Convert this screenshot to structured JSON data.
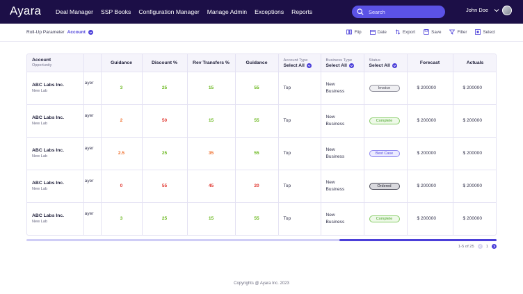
{
  "app": {
    "logo": "Ayara"
  },
  "nav": {
    "items": [
      "Deal Manager",
      "SSP Books",
      "Configuration Manager",
      "Manage Admin",
      "Exceptions",
      "Reports"
    ]
  },
  "search": {
    "placeholder": "Search"
  },
  "user": {
    "name": "John Doe"
  },
  "toolbar": {
    "rollup_label": "Roll-Up Parameter",
    "rollup_value": "Account",
    "tools": [
      "Flip",
      "Date",
      "Export",
      "Save",
      "Filter",
      "Select"
    ]
  },
  "table": {
    "headers": {
      "account": "Account",
      "opportunity": "Opportunity",
      "guidance1": "Guidance",
      "discount": "Discount %",
      "rev_transfers": "Rev Transfers %",
      "guidance2": "Guidance",
      "account_type": "Account Type",
      "business_type": "Business Type",
      "status": "Status",
      "select_all": "Select All",
      "forecast": "Forecast",
      "actuals": "Actuals"
    },
    "rows": [
      {
        "account": "ABC Labs Inc.",
        "opportunity": "New Lab",
        "player": "ayer",
        "guidance1": "3",
        "discount": "25",
        "rev_transfers": "15",
        "guidance2": "55",
        "account_type": "Top",
        "business_type": "New Business",
        "status": "Invoice",
        "forecast": "$ 200000",
        "actuals": "$ 200000"
      },
      {
        "account": "ABC Labs Inc.",
        "opportunity": "New Lab",
        "player": "ayer",
        "guidance1": "2",
        "discount": "50",
        "rev_transfers": "15",
        "guidance2": "55",
        "account_type": "Top",
        "business_type": "New Business",
        "status": "Complete",
        "forecast": "$ 200000",
        "actuals": "$ 200000"
      },
      {
        "account": "ABC Labs Inc.",
        "opportunity": "New Lab",
        "player": "ayer",
        "guidance1": "2.5",
        "discount": "25",
        "rev_transfers": "35",
        "guidance2": "55",
        "account_type": "Top",
        "business_type": "New Business",
        "status": "Best Case",
        "forecast": "$ 200000",
        "actuals": "$ 200000"
      },
      {
        "account": "ABC Labs Inc.",
        "opportunity": "New Lab",
        "player": "ayer",
        "guidance1": "0",
        "discount": "55",
        "rev_transfers": "45",
        "guidance2": "20",
        "account_type": "Top",
        "business_type": "New Business",
        "status": "Ordered",
        "forecast": "$ 200000",
        "actuals": "$ 200000"
      },
      {
        "account": "ABC Labs Inc.",
        "opportunity": "New Lab",
        "player": "ayer",
        "guidance1": "3",
        "discount": "25",
        "rev_transfers": "15",
        "guidance2": "55",
        "account_type": "Top",
        "business_type": "New Business",
        "status": "Complete",
        "forecast": "$ 200000",
        "actuals": "$ 200000"
      }
    ]
  },
  "pagination": {
    "range": "1-5 of 25",
    "page": "1"
  },
  "footer": {
    "copyright": "Copyrights @ Ayara Inc. 2023"
  },
  "colors": {
    "nav_bg": "#1c0f47",
    "accent": "#4b3fd9",
    "search_bg": "#5b52e6",
    "green": "#6bb81f",
    "red": "#e13a33",
    "orange": "#ef6f2c"
  }
}
